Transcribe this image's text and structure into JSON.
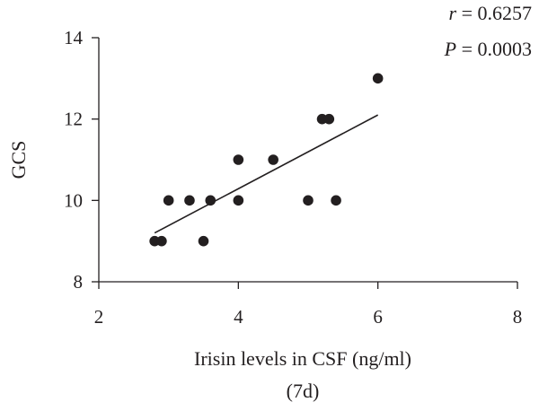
{
  "chart_data": {
    "type": "scatter",
    "xlabel": "Irisin levels in CSF (ng/ml)",
    "xlabel_line2": "(7d)",
    "ylabel": "GCS",
    "xlim": [
      2,
      8
    ],
    "ylim": [
      8,
      14
    ],
    "x_ticks": [
      2,
      4,
      6,
      8
    ],
    "y_ticks": [
      8,
      10,
      12,
      14
    ],
    "grid": false,
    "points": [
      {
        "x": 2.8,
        "y": 9
      },
      {
        "x": 2.9,
        "y": 9
      },
      {
        "x": 3.0,
        "y": 10
      },
      {
        "x": 3.3,
        "y": 10
      },
      {
        "x": 3.5,
        "y": 9
      },
      {
        "x": 3.6,
        "y": 10
      },
      {
        "x": 4.0,
        "y": 11
      },
      {
        "x": 4.0,
        "y": 10
      },
      {
        "x": 4.5,
        "y": 11
      },
      {
        "x": 5.0,
        "y": 10
      },
      {
        "x": 5.2,
        "y": 12
      },
      {
        "x": 5.3,
        "y": 12
      },
      {
        "x": 5.4,
        "y": 10
      },
      {
        "x": 6.0,
        "y": 13
      }
    ],
    "fit_line": {
      "x": [
        2.8,
        6.0
      ],
      "y": [
        9.2,
        12.1
      ]
    },
    "annotations": {
      "r_label": "r",
      "r_value": " = 0.6257",
      "p_label": "P",
      "p_value": " = 0.0003"
    }
  }
}
